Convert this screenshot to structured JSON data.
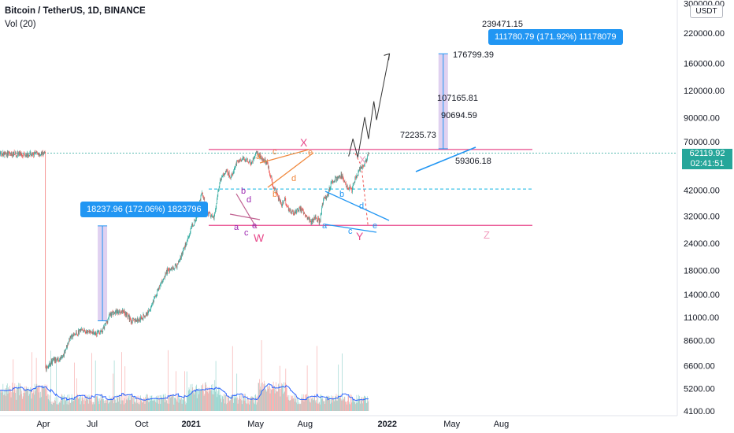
{
  "header": {
    "symbol": "Bitcoin / TetherUS, 1D, BINANCE",
    "volume_indicator": "Vol (20)"
  },
  "currency_badge": "USDT",
  "last_price": {
    "value": "62119.92",
    "countdown": "02:41:51"
  },
  "colors": {
    "up": "#26a69a",
    "down": "#ef5350",
    "pink": "#e84a8b",
    "orange": "#f0883e",
    "blue": "#2196f3",
    "cyan": "#40c4e8",
    "purple_range": "#cbb3e6",
    "volume_ma": "#2962ff"
  },
  "chart_data": {
    "type": "candlestick",
    "title": "Bitcoin / TetherUS, 1D, BINANCE",
    "y_scale": "log",
    "y_ticks": [
      "300000.00",
      "220000.00",
      "160000.00",
      "120000.00",
      "90000.00",
      "70000.00",
      "42000.00",
      "32000.00",
      "24000.00",
      "18000.00",
      "14000.00",
      "11000.00",
      "8600.00",
      "6600.00",
      "5200.00",
      "4100.00"
    ],
    "x_ticks": [
      "Apr",
      "Jul",
      "Oct",
      "2021",
      "May",
      "Aug",
      "2022",
      "May",
      "Aug"
    ],
    "price_levels": {
      "resistance": 64500,
      "support": 29000,
      "mid": 42500
    },
    "projection_path": [
      {
        "date": "2021-10-21",
        "price": 60000
      },
      {
        "date": "2021-10-29",
        "price": 72235.73
      },
      {
        "date": "2021-11-07",
        "price": 59306.18
      },
      {
        "date": "2021-11-20",
        "price": 90694.59
      },
      {
        "date": "2021-11-27",
        "price": 72000
      },
      {
        "date": "2021-12-07",
        "price": 107165.81
      },
      {
        "date": "2021-12-12",
        "price": 88000
      },
      {
        "date": "2022-01-05",
        "price": 176799.39
      }
    ],
    "projection_labels": [
      "72235.73",
      "59306.18",
      "90694.59",
      "107165.81",
      "176799.39",
      "239471.15"
    ],
    "alt_projection": {
      "points": [
        {
          "date": "2021-11-02",
          "price": 62000
        },
        {
          "date": "2021-11-14",
          "price": 54000
        },
        {
          "date": "2021-11-26",
          "price": 29000
        }
      ],
      "labels": [
        "X",
        "Z"
      ]
    },
    "measure_ranges": [
      {
        "label": "18237.96 (172.06%) 1823796",
        "from_price": 10600,
        "to_price": 28840,
        "date": "2020-07-20"
      },
      {
        "label": "111780.79 (171.92%) 11178079",
        "from_price": 65000,
        "to_price": 176780,
        "date": "2022-04-15"
      }
    ],
    "wave_labels": {
      "W": [
        "a",
        "b",
        "c",
        "d",
        "e",
        "W"
      ],
      "X": [
        "a",
        "b",
        "c",
        "d",
        "e",
        "X"
      ],
      "Y": [
        "a",
        "b",
        "c",
        "d",
        "e",
        "Y"
      ]
    },
    "series": [
      {
        "name": "BTCUSDT",
        "ohlc_anchor_prices": [
          6400,
          7100,
          9600,
          11400,
          10600,
          13800,
          19000,
          29000,
          41000,
          31000,
          58000,
          47000,
          64500,
          30000,
          34000,
          29700,
          40000,
          50000,
          43000,
          62000
        ]
      },
      {
        "name": "Vol (20)",
        "type": "volume"
      }
    ]
  }
}
